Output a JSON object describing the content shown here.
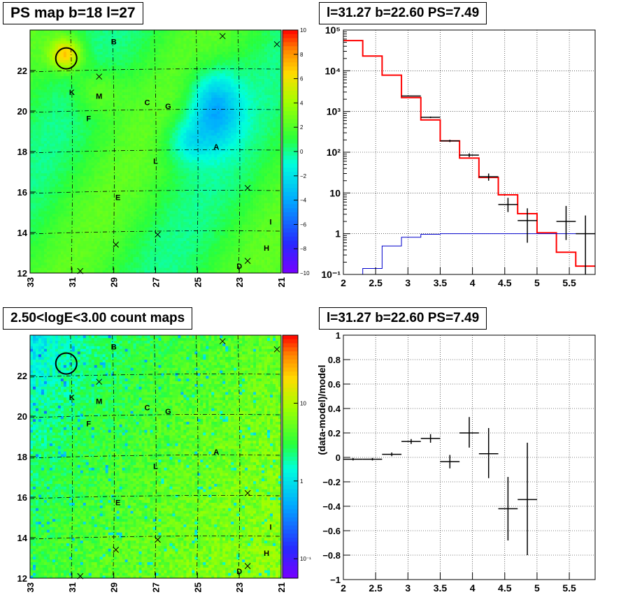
{
  "panels": {
    "ps_map": {
      "title": "PS map b=18 l=27",
      "x_ticks": [
        "33",
        "31",
        "29",
        "27",
        "25",
        "23",
        "21"
      ],
      "y_ticks": [
        "12",
        "14",
        "16",
        "18",
        "20",
        "22"
      ],
      "colorbar_ticks": [
        "10",
        "8",
        "6",
        "4",
        "2",
        "0",
        "−2",
        "−4",
        "−6",
        "−8",
        "−10"
      ],
      "source_labels": [
        "B",
        "K",
        "M",
        "C",
        "G",
        "F",
        "A",
        "L",
        "E",
        "I",
        "H",
        "D"
      ]
    },
    "count_map": {
      "title": "2.50<logE<3.00 count maps",
      "x_ticks": [
        "33",
        "31",
        "29",
        "27",
        "25",
        "23",
        "21"
      ],
      "y_ticks": [
        "12",
        "14",
        "16",
        "18",
        "20",
        "22"
      ],
      "colorbar_ticks": [
        "10",
        "1",
        "10⁻¹"
      ],
      "source_labels": [
        "B",
        "K",
        "M",
        "C",
        "G",
        "F",
        "A",
        "L",
        "E",
        "I",
        "H",
        "D"
      ]
    },
    "spectrum": {
      "title": "l=31.27 b=22.60 PS=7.49"
    },
    "residual": {
      "title": "l=31.27 b=22.60 PS=7.49"
    }
  },
  "chart_data": [
    {
      "type": "heatmap",
      "title": "PS map b=18 l=27",
      "xlim": [
        33,
        21
      ],
      "ylim": [
        12,
        24
      ],
      "zlim": [
        -10,
        10
      ],
      "colormap": "rainbow",
      "sources": [
        {
          "label": "B",
          "l": 29.0,
          "b": 23.3
        },
        {
          "label": "K",
          "l": 31.0,
          "b": 20.8
        },
        {
          "label": "M",
          "l": 29.7,
          "b": 20.6
        },
        {
          "label": "C",
          "l": 27.4,
          "b": 20.3
        },
        {
          "label": "G",
          "l": 26.4,
          "b": 20.1
        },
        {
          "label": "F",
          "l": 30.2,
          "b": 19.5
        },
        {
          "label": "A",
          "l": 24.1,
          "b": 18.1
        },
        {
          "label": "L",
          "l": 27.0,
          "b": 17.4
        },
        {
          "label": "E",
          "l": 28.8,
          "b": 15.6
        },
        {
          "label": "I",
          "l": 21.5,
          "b": 14.4
        },
        {
          "label": "H",
          "l": 21.7,
          "b": 13.1
        },
        {
          "label": "D",
          "l": 23.0,
          "b": 12.2
        }
      ]
    },
    {
      "type": "line",
      "title": "l=31.27 b=22.60 PS=7.49",
      "xlabel": "",
      "ylabel": "",
      "xlim": [
        2,
        5.9
      ],
      "ylim": [
        0.1,
        100000
      ],
      "log_y": true,
      "x_ticks": [
        "2",
        "2.5",
        "3",
        "3.5",
        "4",
        "4.5",
        "5",
        "5.5"
      ],
      "y_ticks": [
        "10⁻¹",
        "1",
        "10",
        "10²",
        "10³",
        "10⁴",
        "10⁵"
      ],
      "grid": true,
      "bin_edges": [
        2.0,
        2.3,
        2.6,
        2.9,
        3.2,
        3.5,
        3.8,
        4.1,
        4.4,
        4.7,
        5.0,
        5.3,
        5.6,
        5.9
      ],
      "series": [
        {
          "color": "#ff0000",
          "values": [
            55000,
            23000,
            7800,
            2200,
            620,
            190,
            72,
            24,
            9,
            3.1,
            1.05,
            0.35,
            0.16
          ]
        },
        {
          "color": "#0000cc",
          "values": [
            0.1,
            0.14,
            0.5,
            0.82,
            0.97,
            1.0,
            1.0,
            1.0,
            1.0,
            1.0,
            1.0,
            1.0,
            1.0
          ]
        }
      ],
      "data_points": [
        {
          "x": 3.05,
          "y": 2400,
          "xerr": 0.15,
          "ylo": 2350,
          "yhi": 2450
        },
        {
          "x": 3.35,
          "y": 720,
          "xerr": 0.15,
          "ylo": 690,
          "yhi": 750
        },
        {
          "x": 3.65,
          "y": 190,
          "xerr": 0.15,
          "ylo": 178,
          "yhi": 202
        },
        {
          "x": 3.95,
          "y": 85,
          "xerr": 0.15,
          "ylo": 76,
          "yhi": 94
        },
        {
          "x": 4.25,
          "y": 25,
          "xerr": 0.15,
          "ylo": 20,
          "yhi": 30
        },
        {
          "x": 4.55,
          "y": 5.2,
          "xerr": 0.15,
          "ylo": 3.4,
          "yhi": 7.6
        },
        {
          "x": 4.85,
          "y": 2.1,
          "xerr": 0.15,
          "ylo": 0.6,
          "yhi": 4.2
        },
        {
          "x": 5.45,
          "y": 2.0,
          "xerr": 0.15,
          "ylo": 0.7,
          "yhi": 4.8
        },
        {
          "x": 5.75,
          "y": 1.0,
          "xerr": 0.15,
          "ylo": 0.1,
          "yhi": 2.8
        }
      ]
    },
    {
      "type": "heatmap",
      "title": "2.50<logE<3.00 count maps",
      "xlim": [
        33,
        21
      ],
      "ylim": [
        12,
        24
      ],
      "zlim": [
        0.05,
        40
      ],
      "log_z": true,
      "colormap": "rainbow"
    },
    {
      "type": "scatter",
      "title": "l=31.27 b=22.60 PS=7.49",
      "xlabel": "",
      "ylabel": "(data-model)/model",
      "xlim": [
        2,
        5.9
      ],
      "ylim": [
        -1,
        1
      ],
      "grid": true,
      "x_ticks": [
        "2",
        "2.5",
        "3",
        "3.5",
        "4",
        "4.5",
        "5",
        "5.5"
      ],
      "y_ticks": [
        "−1",
        "−0.8",
        "−0.6",
        "−0.4",
        "−0.2",
        "0",
        "0.2",
        "0.4",
        "0.6",
        "0.8",
        "1"
      ],
      "points": [
        {
          "x": 2.15,
          "y": -0.015,
          "xerr": 0.15,
          "ylo": -0.025,
          "yhi": -0.005
        },
        {
          "x": 2.45,
          "y": -0.015,
          "xerr": 0.15,
          "ylo": -0.025,
          "yhi": -0.005
        },
        {
          "x": 2.75,
          "y": 0.025,
          "xerr": 0.15,
          "ylo": 0.01,
          "yhi": 0.04
        },
        {
          "x": 3.05,
          "y": 0.13,
          "xerr": 0.15,
          "ylo": 0.11,
          "yhi": 0.15
        },
        {
          "x": 3.35,
          "y": 0.155,
          "xerr": 0.15,
          "ylo": 0.12,
          "yhi": 0.19
        },
        {
          "x": 3.65,
          "y": -0.035,
          "xerr": 0.15,
          "ylo": -0.09,
          "yhi": 0.02
        },
        {
          "x": 3.95,
          "y": 0.2,
          "xerr": 0.15,
          "ylo": 0.08,
          "yhi": 0.33
        },
        {
          "x": 4.25,
          "y": 0.03,
          "xerr": 0.15,
          "ylo": -0.17,
          "yhi": 0.24
        },
        {
          "x": 4.55,
          "y": -0.42,
          "xerr": 0.15,
          "ylo": -0.68,
          "yhi": -0.16
        },
        {
          "x": 4.85,
          "y": -0.345,
          "xerr": 0.15,
          "ylo": -0.8,
          "yhi": 0.12
        }
      ]
    }
  ]
}
